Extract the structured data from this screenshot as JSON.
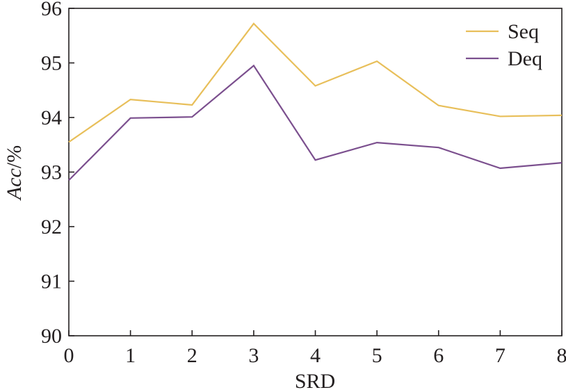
{
  "chart_data": {
    "type": "line",
    "title": "",
    "xlabel": "SRD",
    "ylabel_italic": "Acc",
    "ylabel_unit": "/%",
    "x": [
      0,
      1,
      2,
      3,
      4,
      5,
      6,
      7,
      8
    ],
    "xlim": [
      0,
      8
    ],
    "ylim": [
      90,
      96
    ],
    "xticks": [
      0,
      1,
      2,
      3,
      4,
      5,
      6,
      7,
      8
    ],
    "yticks": [
      90,
      91,
      92,
      93,
      94,
      95,
      96
    ],
    "grid": false,
    "legend_position": "top-right",
    "series": [
      {
        "name": "Seq",
        "color": "#e8bf5a",
        "values": [
          93.55,
          94.33,
          94.23,
          95.72,
          94.58,
          95.03,
          94.22,
          94.02,
          94.04
        ]
      },
      {
        "name": "Deq",
        "color": "#7b4f8e",
        "values": [
          92.85,
          93.99,
          94.01,
          94.95,
          93.22,
          93.54,
          93.45,
          93.07,
          93.17
        ]
      }
    ]
  }
}
